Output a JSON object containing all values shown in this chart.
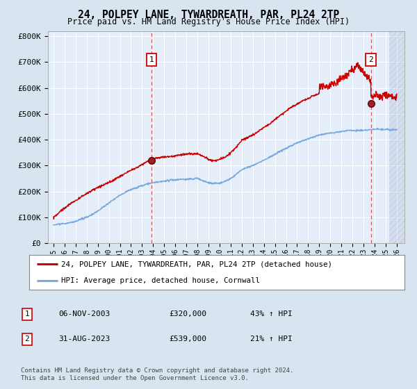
{
  "title": "24, POLPEY LANE, TYWARDREATH, PAR, PL24 2TP",
  "subtitle": "Price paid vs. HM Land Registry's House Price Index (HPI)",
  "ylim": [
    0,
    820000
  ],
  "yticks": [
    0,
    100000,
    200000,
    300000,
    400000,
    500000,
    600000,
    700000,
    800000
  ],
  "ytick_labels": [
    "£0",
    "£100K",
    "£200K",
    "£300K",
    "£400K",
    "£500K",
    "£600K",
    "£700K",
    "£800K"
  ],
  "xlim_start": 1994.5,
  "xlim_end": 2026.7,
  "background_color": "#d8e4f0",
  "plot_bg_color": "#e4edf8",
  "grid_color": "#ffffff",
  "red_line_color": "#cc0000",
  "blue_line_color": "#7aaadd",
  "marker1_date": 2003.85,
  "marker1_value": 320000,
  "marker2_date": 2023.66,
  "marker2_value": 539000,
  "legend_label_red": "24, POLPEY LANE, TYWARDREATH, PAR, PL24 2TP (detached house)",
  "legend_label_blue": "HPI: Average price, detached house, Cornwall",
  "table_row1": [
    "1",
    "06-NOV-2003",
    "£320,000",
    "43% ↑ HPI"
  ],
  "table_row2": [
    "2",
    "31-AUG-2023",
    "£539,000",
    "21% ↑ HPI"
  ],
  "footer": "Contains HM Land Registry data © Crown copyright and database right 2024.\nThis data is licensed under the Open Government Licence v3.0."
}
